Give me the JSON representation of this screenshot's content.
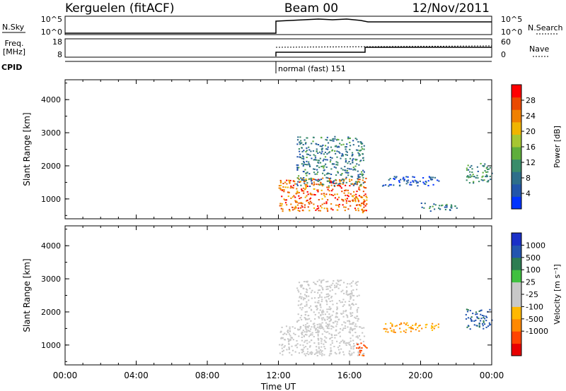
{
  "header": {
    "station": "Kerguelen (fitACF)",
    "beam": "Beam 00",
    "date": "12/Nov/2011"
  },
  "params": {
    "nsky_label": "N.Sky",
    "nsky_ticks": [
      "10^5",
      "10^0"
    ],
    "nsearch_ticks": [
      "10^5",
      "10^0"
    ],
    "nsearch_label": "N.Search",
    "freq_label": "Freq.",
    "freq_unit": "[MHz]",
    "freq_ticks": [
      "18",
      "8"
    ],
    "nave_ticks": [
      "60",
      "0"
    ],
    "nave_label": "Nave",
    "cpid_label": "CPID",
    "cpid_text": "normal (fast) 151"
  },
  "colors": {
    "power": [
      "#0033ff",
      "#2255aa",
      "#2e6e8a",
      "#3a8c6a",
      "#5fae3c",
      "#a6c632",
      "#f0b400",
      "#f08000",
      "#ea4a00",
      "#ff0000"
    ],
    "velocity": [
      "#e80000",
      "#ff4400",
      "#ff8800",
      "#ffb800",
      "#c8c8c8",
      "#c8c8c8",
      "#40c040",
      "#2d7d52",
      "#2355b0",
      "#1a30c8"
    ]
  },
  "chart_data": [
    {
      "type": "heatmap",
      "title": "Power",
      "ylabel": "Slant Range [km]",
      "yticks": [
        "4000",
        "3000",
        "2000",
        "1000"
      ],
      "ylim": [
        400,
        4600
      ],
      "xlim": [
        0,
        24
      ],
      "colorbar": {
        "label": "Power [dB]",
        "ticks": [
          "28",
          "24",
          "20",
          "16",
          "12",
          "8",
          "4"
        ],
        "range": [
          0,
          32
        ]
      },
      "regions": [
        {
          "t0": 12.0,
          "t1": 17.0,
          "r0": 650,
          "r1": 1650,
          "value": 26
        },
        {
          "t0": 13.0,
          "t1": 16.8,
          "r0": 1400,
          "r1": 2900,
          "value": 9
        },
        {
          "t0": 16.3,
          "t1": 17.0,
          "r0": 600,
          "r1": 1100,
          "value": 24
        },
        {
          "t0": 17.8,
          "t1": 21.0,
          "r0": 1400,
          "r1": 1700,
          "value": 5
        },
        {
          "t0": 20.0,
          "t1": 22.0,
          "r0": 650,
          "r1": 900,
          "value": 9
        },
        {
          "t0": 22.5,
          "t1": 24.0,
          "r0": 1500,
          "r1": 2100,
          "value": 11
        }
      ]
    },
    {
      "type": "heatmap",
      "title": "Velocity",
      "ylabel": "Slant Range [km]",
      "yticks": [
        "4000",
        "3000",
        "2000",
        "1000"
      ],
      "ylim": [
        400,
        4600
      ],
      "xlim": [
        0,
        24
      ],
      "xticks": [
        "00:00",
        "04:00",
        "08:00",
        "12:00",
        "16:00",
        "20:00",
        "00:00"
      ],
      "xlabel": "Time UT",
      "colorbar": {
        "label": "Velocity [m s⁻¹]",
        "ticks": [
          "1000",
          "500",
          "100",
          "25",
          "-25",
          "-100",
          "-500",
          "-1000"
        ]
      },
      "regions": [
        {
          "t0": 12.0,
          "t1": 16.8,
          "r0": 700,
          "r1": 1600,
          "value": 0
        },
        {
          "t0": 13.0,
          "t1": 16.5,
          "r0": 1400,
          "r1": 3000,
          "value": 0
        },
        {
          "t0": 16.3,
          "t1": 17.0,
          "r0": 700,
          "r1": 1100,
          "value": -700
        },
        {
          "t0": 17.8,
          "t1": 21.0,
          "r0": 1400,
          "r1": 1700,
          "value": -100
        },
        {
          "t0": 22.5,
          "t1": 24.0,
          "r0": 1500,
          "r1": 2100,
          "value": 600
        }
      ]
    }
  ]
}
